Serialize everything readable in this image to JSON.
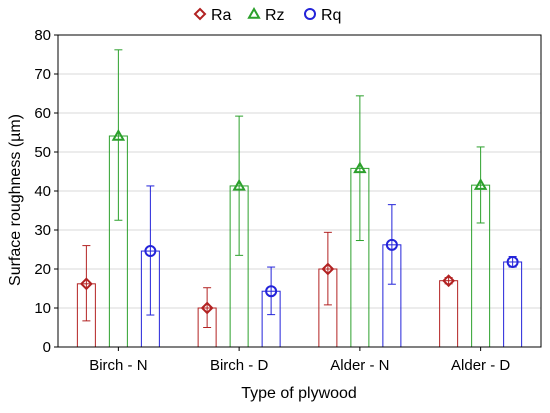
{
  "chart_data": {
    "type": "bar",
    "xlabel": "Type of plywood",
    "ylabel": "Surface roughness (µm)",
    "categories": [
      "Birch - N",
      "Birch - D",
      "Alder - N",
      "Alder - D"
    ],
    "ylim": [
      0,
      80
    ],
    "yticks": [
      0,
      10,
      20,
      30,
      40,
      50,
      60,
      70,
      80
    ],
    "grid": true,
    "legend_position": "top-center",
    "series": [
      {
        "name": "Ra",
        "color": "#b22222",
        "marker": "diamond",
        "values": [
          16.2,
          10.0,
          20.0,
          17.0
        ],
        "error_low": [
          6.7,
          5.0,
          10.8,
          16.2
        ],
        "error_high": [
          26.0,
          15.2,
          29.4,
          17.8
        ]
      },
      {
        "name": "Rz",
        "color": "#2ca02c",
        "marker": "triangle",
        "values": [
          54.1,
          41.3,
          45.8,
          41.5
        ],
        "error_low": [
          32.5,
          23.5,
          27.3,
          31.8
        ],
        "error_high": [
          76.2,
          59.2,
          64.4,
          51.3
        ]
      },
      {
        "name": "Rq",
        "color": "#2323d9",
        "marker": "circle",
        "values": [
          24.6,
          14.3,
          26.2,
          21.8
        ],
        "error_low": [
          8.2,
          8.3,
          16.1,
          20.5
        ],
        "error_high": [
          41.3,
          20.5,
          36.5,
          23.2
        ]
      }
    ]
  }
}
